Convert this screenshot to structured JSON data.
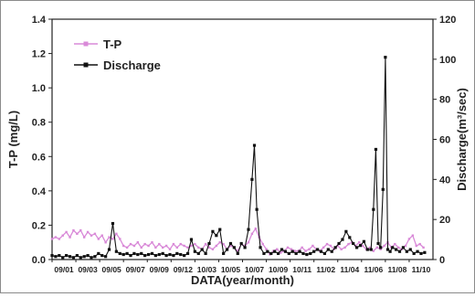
{
  "chart_data": {
    "type": "line",
    "xlabel": "DATA(year/month)",
    "ylabel_left": "T-P (mg/L)",
    "ylabel_right": "Discharge(m³/sec)",
    "ylim_left": [
      0,
      1.4
    ],
    "ylim_right": [
      0,
      120
    ],
    "yticks_left": [
      "0.0",
      "0.2",
      "0.4",
      "0.6",
      "0.8",
      "1.0",
      "1.2",
      "1.4"
    ],
    "yticks_right": [
      "0",
      "20",
      "40",
      "60",
      "80",
      "100",
      "120"
    ],
    "categories": [
      "09/01",
      "09/03",
      "09/05",
      "09/07",
      "09/09",
      "09/12",
      "10/03",
      "10/05",
      "10/07",
      "10/09",
      "10/11",
      "11/02",
      "11/04",
      "11/06",
      "11/08",
      "11/10"
    ],
    "legend": {
      "position": "top-left",
      "entries": [
        "T-P",
        "Discharge"
      ]
    },
    "colors": {
      "tp": "#d98ad8",
      "discharge": "#111111",
      "axis": "#222222"
    },
    "series": [
      {
        "name": "T-P",
        "axis": "left",
        "x": [
          0,
          0.15,
          0.3,
          0.45,
          0.6,
          0.75,
          0.9,
          1.05,
          1.2,
          1.35,
          1.5,
          1.65,
          1.8,
          1.95,
          2.1,
          2.25,
          2.4,
          2.55,
          2.7,
          2.85,
          3.0,
          3.15,
          3.3,
          3.45,
          3.6,
          3.75,
          3.9,
          4.05,
          4.2,
          4.35,
          4.5,
          4.65,
          4.8,
          4.95,
          5.1,
          5.25,
          5.4,
          5.55,
          5.7,
          5.85,
          6.0,
          6.15,
          6.3,
          6.45,
          6.6,
          6.75,
          6.9,
          7.05,
          7.2,
          7.35,
          7.5,
          7.65,
          7.8,
          7.95,
          8.1,
          8.25,
          8.4,
          8.55,
          8.7,
          8.85,
          9.0,
          9.15,
          9.3,
          9.45,
          9.6,
          9.75,
          9.9,
          10.05,
          10.2,
          10.35,
          10.5,
          10.65,
          10.8,
          10.95,
          11.1,
          11.25,
          11.4,
          11.55,
          11.7,
          11.85,
          12.0,
          12.15,
          12.3,
          12.45,
          12.6,
          12.75,
          12.9,
          13.05,
          13.2,
          13.35,
          13.5,
          13.65,
          13.8,
          13.95,
          14.1,
          14.25,
          14.4,
          14.55,
          14.7,
          14.85,
          15.0,
          15.15,
          15.3,
          15.45,
          15.6
        ],
        "values": [
          0.12,
          0.13,
          0.12,
          0.14,
          0.16,
          0.13,
          0.17,
          0.15,
          0.17,
          0.13,
          0.16,
          0.14,
          0.15,
          0.12,
          0.14,
          0.1,
          0.13,
          0.12,
          0.15,
          0.12,
          0.08,
          0.07,
          0.09,
          0.08,
          0.1,
          0.07,
          0.09,
          0.08,
          0.1,
          0.07,
          0.09,
          0.07,
          0.08,
          0.06,
          0.09,
          0.07,
          0.09,
          0.08,
          0.07,
          0.08,
          0.09,
          0.07,
          0.06,
          0.09,
          0.07,
          0.06,
          0.08,
          0.1,
          0.09,
          0.06,
          0.08,
          0.07,
          0.05,
          0.09,
          0.08,
          0.1,
          0.15,
          0.18,
          0.13,
          0.09,
          0.06,
          0.03,
          0.05,
          0.06,
          0.04,
          0.05,
          0.07,
          0.06,
          0.05,
          0.05,
          0.07,
          0.05,
          0.06,
          0.08,
          0.06,
          0.05,
          0.07,
          0.09,
          0.08,
          0.06,
          0.08,
          0.06,
          0.07,
          0.09,
          0.1,
          0.08,
          0.1,
          0.08,
          0.06,
          0.07,
          0.05,
          0.07,
          0.06,
          0.08,
          0.1,
          0.07,
          0.09,
          0.07,
          0.06,
          0.08,
          0.12,
          0.14,
          0.08,
          0.09,
          0.07
        ]
      },
      {
        "name": "Discharge",
        "axis": "right",
        "x": [
          0,
          0.15,
          0.3,
          0.45,
          0.6,
          0.75,
          0.9,
          1.05,
          1.2,
          1.35,
          1.5,
          1.65,
          1.8,
          1.95,
          2.1,
          2.25,
          2.4,
          2.55,
          2.7,
          2.85,
          3.0,
          3.15,
          3.3,
          3.45,
          3.6,
          3.75,
          3.9,
          4.05,
          4.2,
          4.35,
          4.5,
          4.65,
          4.8,
          4.95,
          5.1,
          5.25,
          5.4,
          5.55,
          5.7,
          5.85,
          6.0,
          6.15,
          6.3,
          6.45,
          6.6,
          6.75,
          6.9,
          7.05,
          7.2,
          7.35,
          7.5,
          7.65,
          7.8,
          7.95,
          8.1,
          8.25,
          8.4,
          8.5,
          8.6,
          8.75,
          8.9,
          9.05,
          9.2,
          9.35,
          9.5,
          9.65,
          9.8,
          9.95,
          10.1,
          10.25,
          10.4,
          10.55,
          10.7,
          10.85,
          11.0,
          11.15,
          11.3,
          11.45,
          11.6,
          11.75,
          11.9,
          12.05,
          12.2,
          12.35,
          12.5,
          12.65,
          12.8,
          12.95,
          13.1,
          13.25,
          13.4,
          13.5,
          13.6,
          13.7,
          13.8,
          13.9,
          14.0,
          14.1,
          14.2,
          14.3,
          14.45,
          14.6,
          14.75,
          14.9,
          15.05,
          15.2,
          15.35,
          15.5,
          15.65
        ],
        "values": [
          2,
          1.5,
          2,
          1,
          2,
          1.5,
          1,
          2,
          1,
          1.5,
          2,
          1,
          1.5,
          3,
          2,
          1.5,
          5,
          18,
          4,
          3,
          2.5,
          3,
          2,
          3,
          2.5,
          3,
          2,
          2.5,
          3,
          2,
          2.5,
          3,
          2,
          2.5,
          2,
          3,
          2.5,
          2,
          3,
          10,
          4,
          3,
          5,
          3,
          8,
          14,
          12,
          15,
          3,
          5,
          8,
          6,
          3,
          8,
          6,
          15,
          40,
          57,
          25,
          6,
          3,
          4,
          3,
          4,
          3,
          5,
          4,
          3,
          4,
          3,
          4,
          3,
          2.5,
          3,
          4,
          5,
          4,
          3,
          5,
          4,
          6,
          8,
          10,
          14,
          11,
          8,
          6,
          7,
          9,
          5,
          5,
          25,
          55,
          8,
          6,
          35,
          101,
          5,
          4,
          6,
          5,
          4,
          6,
          4,
          5,
          3,
          4,
          3,
          3.5
        ]
      }
    ]
  }
}
